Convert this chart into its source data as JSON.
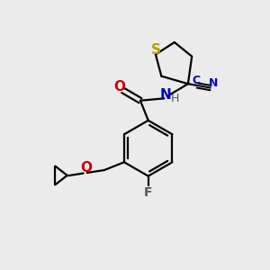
{
  "background_color": "#ebebeb",
  "atom_colors": {
    "S": "#b8a000",
    "N": "#0000cc",
    "O": "#cc0000",
    "F": "#555555",
    "C": "#000000",
    "H": "#555555",
    "CN_label": "#0000cc"
  },
  "bond_color": "#000000",
  "bond_width": 1.6,
  "font_size": 10
}
